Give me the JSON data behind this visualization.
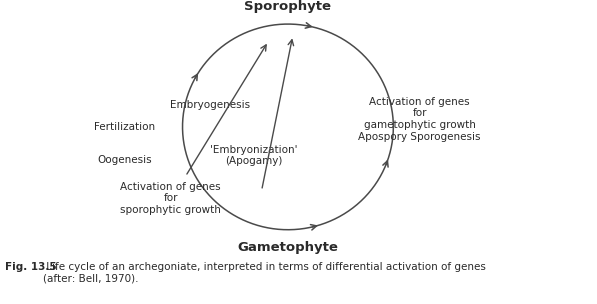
{
  "caption_bold": "Fig. 13.5",
  "caption_text": " Life cycle of an archegoniate, interpreted in terms of differential activation of genes\n(after: Bell, 1970).",
  "sporophyte_label": "Sporophyte",
  "gametophyte_label": "Gametophyte",
  "labels": {
    "embryogenesis": "Embryogenesis",
    "fertilization": "Fertilization",
    "oogenesis": "Oogenesis",
    "embryonization": "'Embryonization'\n(Apogamy)",
    "activation_sporo": "Activation of genes\nfor\nsporophytic growth",
    "activation_gameto": "Activation of genes\nfor\ngametophytic growth\nApospory Sporogenesis"
  },
  "bg_color": "#ffffff",
  "text_color": "#2a2a2a",
  "arrow_color": "#4a4a4a",
  "font_size_labels": 7.5,
  "font_size_nodes": 9.5
}
